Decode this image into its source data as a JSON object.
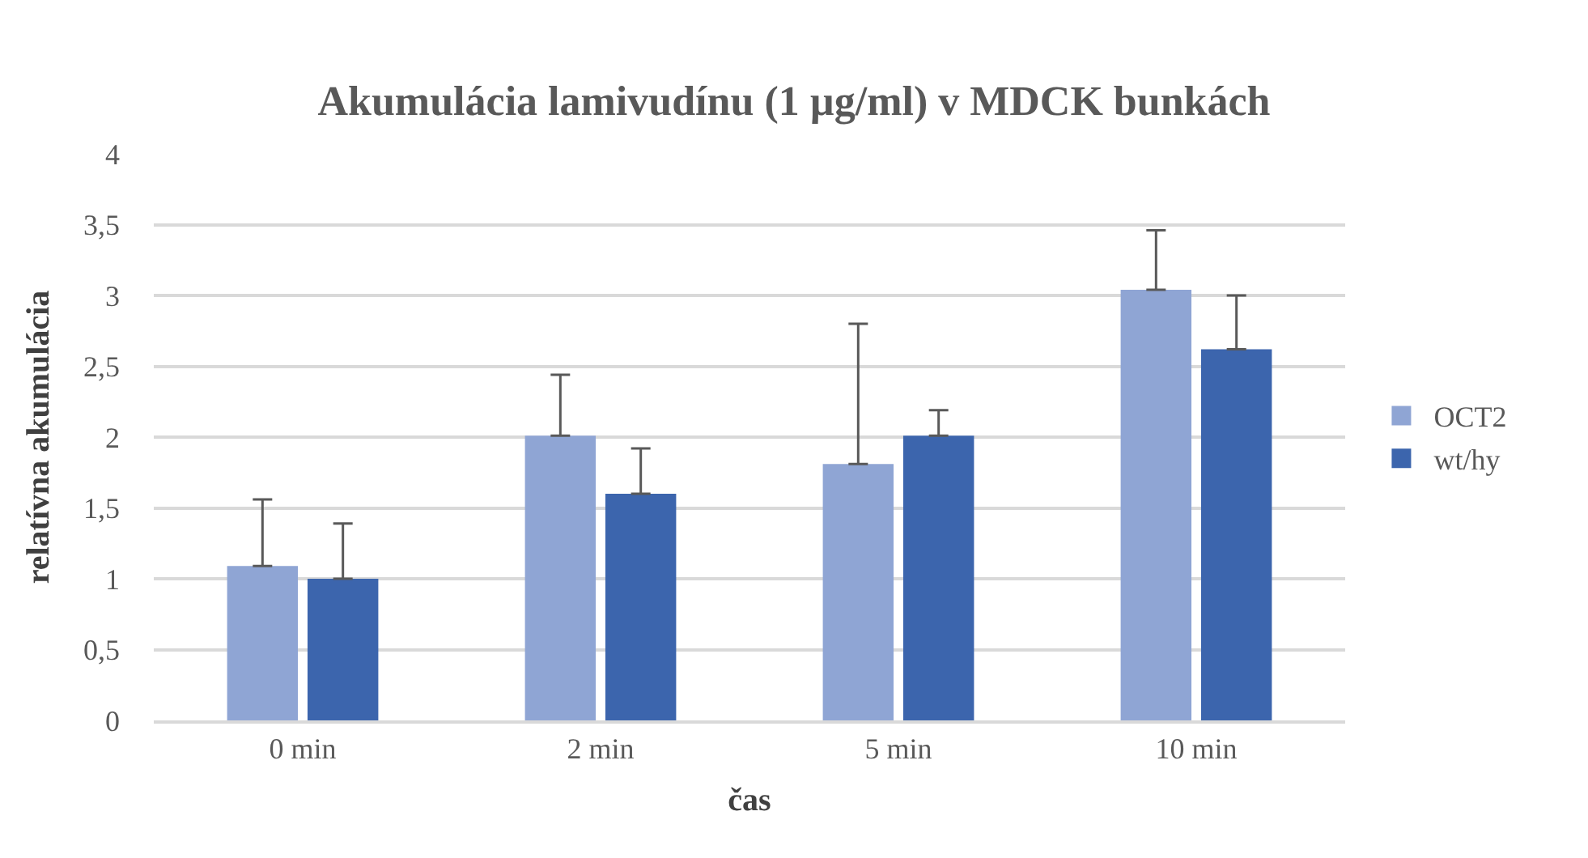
{
  "chart_data": {
    "type": "bar",
    "title": "Akumulácia lamivudínu (1 µg/ml) v MDCK bunkách",
    "xlabel": "čas",
    "ylabel": "relatívna akumulácia",
    "categories": [
      "0 min",
      "2 min",
      "5 min",
      "10 min"
    ],
    "series": [
      {
        "name": "OCT2",
        "color": "#8fa5d4",
        "values": [
          1.09,
          2.01,
          1.81,
          3.04
        ],
        "errors": [
          [
            1.09,
            1.56
          ],
          [
            2.01,
            2.44
          ],
          [
            1.81,
            2.8
          ],
          [
            3.04,
            3.46
          ]
        ]
      },
      {
        "name": "wt/hy",
        "color": "#3c65ad",
        "values": [
          1.0,
          1.6,
          2.01,
          2.62
        ],
        "errors": [
          [
            1.0,
            1.39
          ],
          [
            1.6,
            1.92
          ],
          [
            2.01,
            2.19
          ],
          [
            2.62,
            3.0
          ]
        ]
      }
    ],
    "ylim": [
      0,
      4
    ],
    "yticks": [
      0,
      {
        "value": 0.5,
        "label": "0,5"
      },
      1,
      {
        "value": 1.5,
        "label": "1,5"
      },
      2,
      {
        "value": 2.5,
        "label": "2,5"
      },
      3,
      {
        "value": 3.5,
        "label": "3,5"
      },
      4
    ],
    "grid": "y",
    "legend": "right"
  }
}
